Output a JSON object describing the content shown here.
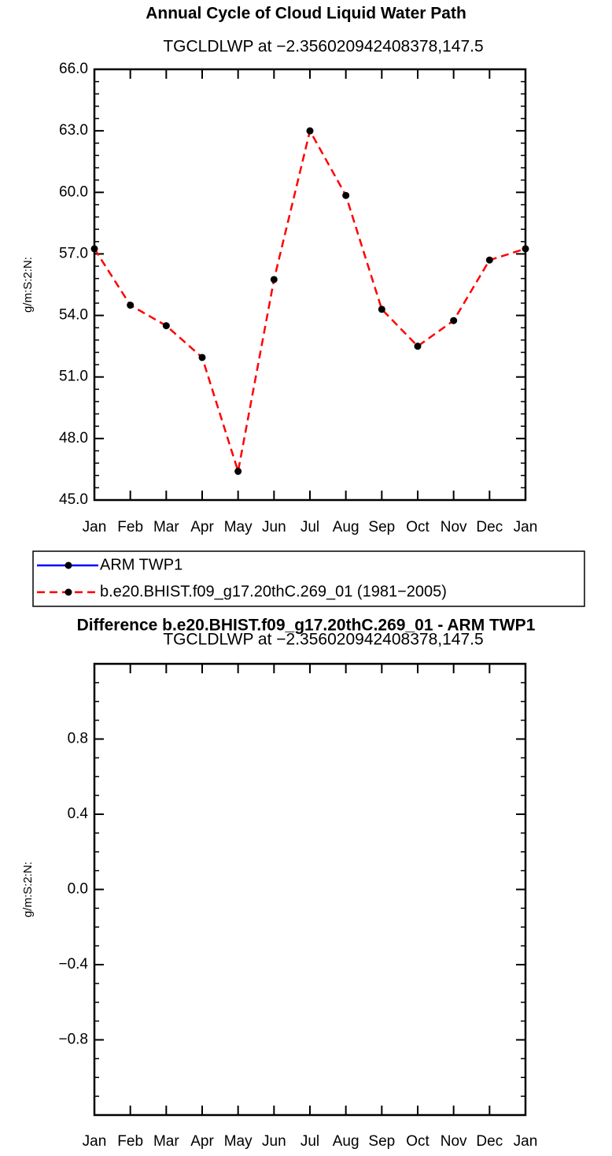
{
  "chart_data": [
    {
      "type": "line",
      "title": "Annual Cycle of Cloud Liquid Water Path",
      "subtitle": "TGCLDLWP  at  −2.356020942408378,147.5",
      "ylabel": "g/m:S:2:N:",
      "categories": [
        "Jan",
        "Feb",
        "Mar",
        "Apr",
        "May",
        "Jun",
        "Jul",
        "Aug",
        "Sep",
        "Oct",
        "Nov",
        "Dec",
        "Jan"
      ],
      "series": [
        {
          "name": "ARM TWP1",
          "color": "#0000ff",
          "line_style": "solid",
          "values": [
            null,
            null,
            null,
            null,
            null,
            null,
            null,
            null,
            null,
            null,
            null,
            null,
            null
          ]
        },
        {
          "name": "b.e20.BHIST.f09_g17.20thC.269_01 (1981−2005)",
          "color": "#ff0000",
          "line_style": "dashed",
          "values": [
            57.25,
            54.5,
            53.5,
            51.95,
            46.4,
            55.75,
            63.0,
            59.85,
            54.3,
            52.5,
            53.75,
            56.7,
            57.25
          ]
        }
      ],
      "ylim": [
        45.0,
        66.0
      ],
      "yticks": [
        {
          "value": 45.0,
          "label": "45.0"
        },
        {
          "value": 48.0,
          "label": "48.0"
        },
        {
          "value": 51.0,
          "label": "51.0"
        },
        {
          "value": 54.0,
          "label": "54.0"
        },
        {
          "value": 57.0,
          "label": "57.0"
        },
        {
          "value": 60.0,
          "label": "60.0"
        },
        {
          "value": 63.0,
          "label": "63.0"
        },
        {
          "value": 66.0,
          "label": "66.0"
        }
      ],
      "legend_position": "bottom"
    },
    {
      "type": "line",
      "title": "Difference b.e20.BHIST.f09_g17.20thC.269_01 - ARM TWP1",
      "subtitle": "TGCLDLWP  at  −2.356020942408378,147.5",
      "ylabel": "g/m:S:2:N:",
      "categories": [
        "Jan",
        "Feb",
        "Mar",
        "Apr",
        "May",
        "Jun",
        "Jul",
        "Aug",
        "Sep",
        "Oct",
        "Nov",
        "Dec",
        "Jan"
      ],
      "ylim": [
        -1.2,
        1.2
      ],
      "yticks": [
        {
          "value": -0.8,
          "label": "−0.8"
        },
        {
          "value": -0.4,
          "label": "−0.4"
        },
        {
          "value": 0.0,
          "label": "0.0"
        },
        {
          "value": 0.4,
          "label": "0.4"
        },
        {
          "value": 0.8,
          "label": "0.8"
        }
      ]
    }
  ]
}
